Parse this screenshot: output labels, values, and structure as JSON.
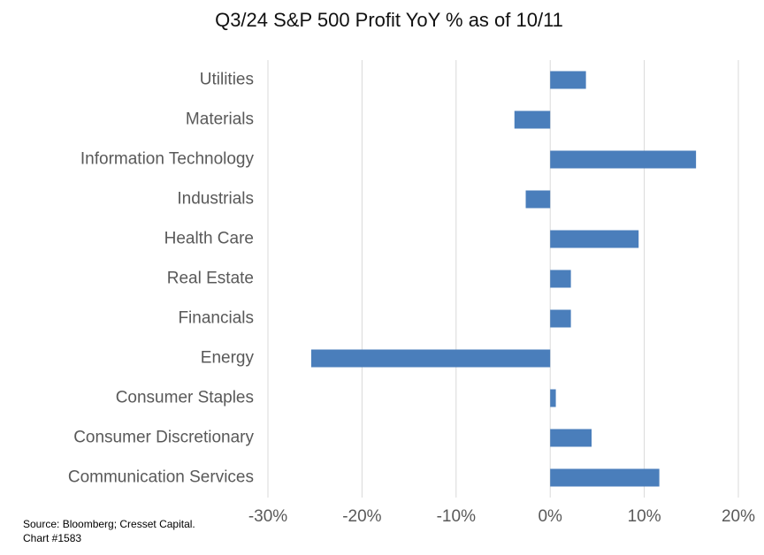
{
  "chart_data": {
    "type": "barh",
    "title": "Q3/24 S&P 500 Profit YoY % as of 10/11",
    "categories": [
      "Utilities",
      "Materials",
      "Information Technology",
      "Industrials",
      "Health Care",
      "Real Estate",
      "Financials",
      "Energy",
      "Consumer Staples",
      "Consumer Discretionary",
      "Communication Services"
    ],
    "values": [
      3.8,
      -3.8,
      15.5,
      -2.6,
      9.4,
      2.2,
      2.2,
      -25.4,
      0.6,
      4.4,
      11.6
    ],
    "color": "#4a7ebb",
    "xlim": [
      -30,
      20
    ],
    "xticks": [
      {
        "value": -30,
        "label": "-30%"
      },
      {
        "value": -20,
        "label": "-20%"
      },
      {
        "value": -10,
        "label": "-10%"
      },
      {
        "value": 0,
        "label": "0%"
      },
      {
        "value": 10,
        "label": "10%"
      },
      {
        "value": 20,
        "label": "20%"
      }
    ],
    "grid": true,
    "source": [
      "Source: Bloomberg; Cresset Capital.",
      "Chart #1583"
    ]
  }
}
